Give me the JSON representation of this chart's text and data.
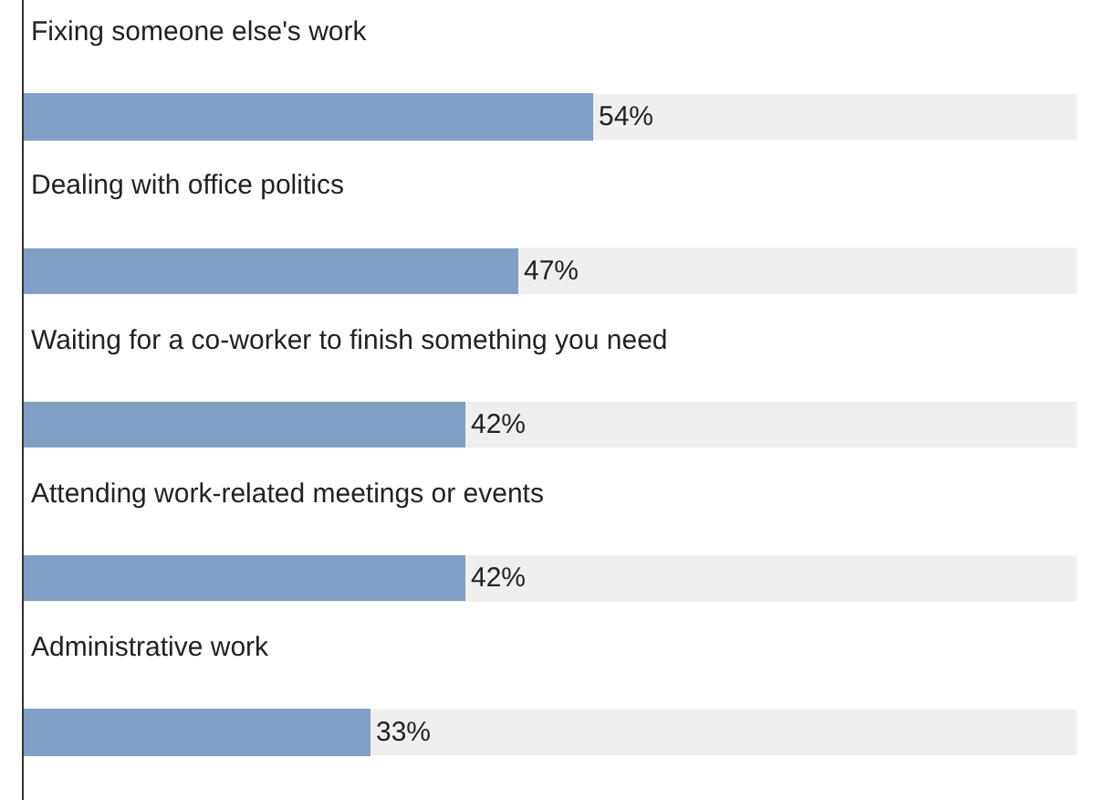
{
  "chart_data": {
    "type": "bar",
    "orientation": "horizontal",
    "categories": [
      "Fixing someone else's work",
      "Dealing with office politics",
      "Waiting for a co-worker to finish something you need",
      "Attending work-related meetings or events",
      "Administrative work"
    ],
    "values": [
      54,
      47,
      42,
      42,
      33
    ],
    "value_labels": [
      "54%",
      "47%",
      "42%",
      "42%",
      "33%"
    ],
    "color": "#7f9fc4",
    "xlim": [
      0,
      100
    ],
    "tick_labels": false,
    "grid": false,
    "legend": false
  }
}
